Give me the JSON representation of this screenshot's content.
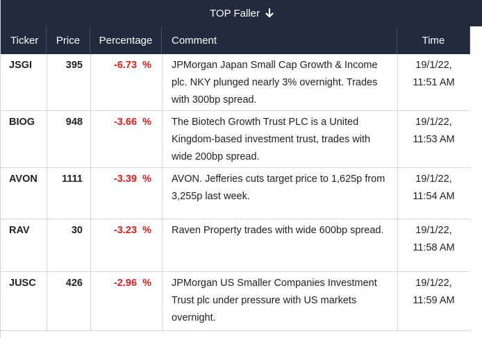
{
  "title": "TOP Faller",
  "columns": [
    "Ticker",
    "Price",
    "Percentage",
    "Comment",
    "Time"
  ],
  "rows": [
    {
      "ticker": "JSGI",
      "price": "395",
      "percentage": "-6.73  %",
      "comment": "JPMorgan Japan Small Cap Growth & Income plc. NKY plunged nearly 3% overnight. Trades with 300bp spread.",
      "date": "19/1/22,",
      "time": "11:51 AM"
    },
    {
      "ticker": "BIOG",
      "price": "948",
      "percentage": "-3.66  %",
      "comment": "The Biotech Growth Trust PLC is a United Kingdom-based investment trust, trades with wide 200bp spread.",
      "date": "19/1/22,",
      "time": "11:53 AM"
    },
    {
      "ticker": "AVON",
      "price": "1111",
      "percentage": "-3.39  %",
      "comment": "AVON. Jefferies cuts target price to 1,625p from 3,255p last week.",
      "date": "19/1/22,",
      "time": "11:54 AM"
    },
    {
      "ticker": "RAV",
      "price": "30",
      "percentage": "-3.23  %",
      "comment": "Raven Property trades with wide 600bp spread.",
      "date": "19/1/22,",
      "time": "11:58 AM"
    },
    {
      "ticker": "JUSC",
      "price": "426",
      "percentage": "-2.96  %",
      "comment": "JPMorgan US Smaller Companies Investment Trust plc under pressure with US markets overnight.",
      "date": "19/1/22,",
      "time": "11:59 AM"
    }
  ]
}
